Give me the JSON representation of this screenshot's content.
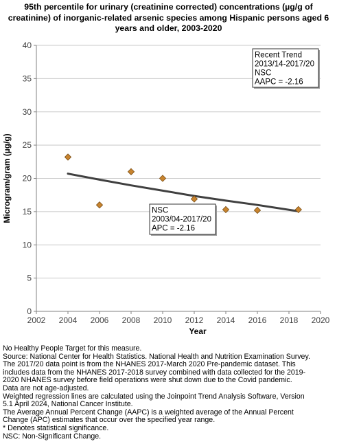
{
  "chart_data": {
    "type": "scatter",
    "title_lines": [
      "95th percentile for urinary (creatinine corrected) concentrations (µg/g of",
      "creatinine) of inorganic-related arsenic species among Hispanic persons aged 6",
      "years and older, 2003-2020"
    ],
    "xlabel": "Year",
    "ylabel": "Microgram/gram (µg/g)",
    "xlim": [
      2002,
      2020
    ],
    "ylim": [
      0,
      40
    ],
    "x_ticks": [
      2002,
      2004,
      2006,
      2008,
      2010,
      2012,
      2014,
      2016,
      2018,
      2020
    ],
    "y_ticks": [
      0,
      5,
      10,
      15,
      20,
      25,
      30,
      35,
      40
    ],
    "grid": "horizontal",
    "series": [
      {
        "marker": "diamond",
        "color": "#c8842f",
        "x": [
          2004,
          2006,
          2008,
          2010,
          2012,
          2014,
          2016,
          2018.6
        ],
        "y": [
          23.2,
          16.0,
          21.0,
          20.0,
          16.9,
          15.3,
          15.2,
          15.3
        ]
      }
    ],
    "trend_line": {
      "color": "#404040",
      "x": [
        2004,
        2006,
        2008,
        2010,
        2012,
        2014,
        2016,
        2018.6
      ],
      "y": [
        20.7,
        19.8,
        18.95,
        18.15,
        17.35,
        16.65,
        16.0,
        15.05
      ]
    },
    "annotations": [
      {
        "id": "recent-trend",
        "lines": [
          "Recent Trend",
          "2013/14-2017/20",
          "NSC",
          "AAPC = -2.16"
        ]
      },
      {
        "id": "overall-trend",
        "lines": [
          "NSC",
          "2003/04-2017/20",
          "APC = -2.16"
        ]
      }
    ]
  },
  "notes": [
    "No Healthy People Target for this measure.",
    "Source: National Center for Health Statistics. National Health and Nutrition Examination Survey.",
    "The 2017/20 data point is from the NHANES 2017-March 2020 Pre-pandemic dataset. This",
    "includes data from the NHANES 2017-2018 survey combined with data collected for the 2019-",
    "2020 NHANES survey before field operations were shut down due to the Covid pandemic.",
    "Data are not age-adjusted.",
    "Weighted regression lines are calculated using the Joinpoint Trend Analysis Software, Version",
    "5.1 April 2024, National Cancer Institute.",
    "The Average Annual Percent Change (AAPC) is a weighted average of the Annual Percent",
    "Change (APC) estimates that occur over the specified year range.",
    "* Denotes statistical significance.",
    "NSC: Non-Significant Change."
  ]
}
